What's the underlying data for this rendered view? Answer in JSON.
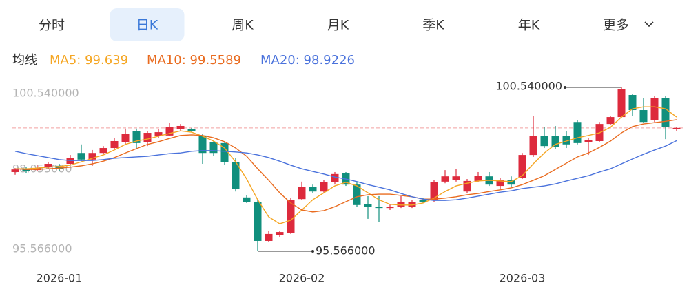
{
  "tabs": [
    "分时",
    "日K",
    "周K",
    "月K",
    "季K",
    "年K",
    "更多"
  ],
  "active_tab": 1,
  "chart_data": {
    "type": "candlestick",
    "legend_title": "均线",
    "up_color": "#dd2a3c",
    "down_color": "#108f7d",
    "categories": [
      null,
      null,
      null,
      null,
      "2026-01",
      null,
      null,
      null,
      null,
      null,
      null,
      null,
      null,
      null,
      null,
      null,
      null,
      null,
      null,
      null,
      null,
      null,
      null,
      null,
      null,
      null,
      "2026-02",
      null,
      null,
      null,
      null,
      null,
      null,
      null,
      null,
      null,
      null,
      null,
      null,
      null,
      null,
      null,
      null,
      null,
      null,
      null,
      "2026-03",
      null,
      null,
      null,
      null,
      null,
      null,
      null,
      null,
      null,
      null,
      null,
      null,
      null,
      null
    ],
    "open": [
      97.97,
      98.07,
      98.03,
      98.12,
      98.16,
      98.22,
      98.55,
      98.35,
      98.55,
      98.7,
      98.87,
      99.22,
      98.87,
      99.06,
      99.08,
      99.27,
      99.27,
      99.08,
      98.87,
      98.85,
      98.28,
      97.2,
      97.07,
      95.88,
      96.05,
      96.13,
      97.15,
      97.51,
      97.38,
      97.66,
      97.93,
      97.59,
      96.99,
      96.92,
      96.88,
      96.92,
      96.92,
      97.13,
      97.11,
      97.68,
      97.72,
      97.38,
      97.7,
      97.84,
      97.55,
      97.72,
      97.8,
      98.49,
      99.06,
      99.06,
      99.06,
      99.49,
      98.87,
      98.91,
      99.43,
      99.64,
      100.31,
      99.85,
      99.54,
      100.21,
      99.27
    ],
    "close": [
      98.05,
      98.01,
      98.09,
      98.22,
      98.07,
      98.39,
      98.35,
      98.55,
      98.7,
      98.91,
      99.12,
      98.85,
      99.16,
      99.18,
      99.33,
      99.37,
      99.22,
      98.55,
      98.55,
      98.28,
      97.45,
      97.07,
      95.88,
      96.09,
      96.15,
      97.13,
      97.51,
      97.38,
      97.66,
      97.91,
      97.59,
      96.97,
      96.92,
      96.88,
      96.92,
      97.07,
      97.07,
      97.07,
      97.66,
      97.84,
      97.84,
      97.7,
      97.86,
      97.59,
      97.72,
      97.59,
      98.49,
      99.06,
      98.76,
      98.74,
      98.81,
      98.85,
      98.95,
      99.43,
      99.64,
      100.48,
      99.85,
      99.49,
      100.21,
      99.33,
      99.31
    ],
    "high": [
      98.09,
      98.12,
      98.18,
      98.28,
      98.22,
      98.49,
      98.81,
      98.64,
      98.76,
      99.01,
      99.29,
      99.29,
      99.22,
      99.27,
      99.47,
      99.43,
      99.31,
      99.12,
      98.91,
      98.89,
      98.39,
      97.28,
      97.13,
      96.19,
      96.19,
      97.18,
      97.68,
      97.59,
      97.72,
      97.97,
      97.97,
      97.66,
      97.24,
      97.24,
      96.99,
      97.24,
      97.13,
      97.18,
      97.72,
      98.03,
      98.07,
      97.76,
      97.97,
      97.97,
      97.8,
      97.84,
      98.55,
      99.68,
      99.33,
      99.37,
      99.22,
      99.54,
      99.01,
      99.49,
      99.68,
      100.54,
      100.35,
      100.21,
      100.27,
      100.27,
      99.33
    ],
    "low": [
      97.89,
      97.93,
      97.99,
      98.07,
      98.01,
      98.18,
      98.3,
      98.16,
      98.51,
      98.66,
      98.81,
      98.66,
      98.76,
      99.01,
      99.06,
      99.22,
      99.18,
      98.22,
      98.47,
      98.18,
      97.38,
      97.03,
      95.566,
      95.84,
      96.0,
      96.09,
      97.13,
      97.34,
      97.34,
      97.59,
      97.55,
      96.92,
      96.55,
      96.46,
      96.82,
      96.88,
      96.88,
      97.03,
      97.07,
      97.63,
      97.68,
      97.34,
      97.66,
      97.55,
      97.45,
      97.51,
      97.76,
      98.43,
      98.7,
      98.66,
      98.7,
      98.81,
      98.49,
      98.87,
      99.39,
      99.6,
      99.68,
      99.47,
      99.49,
      98.97,
      99.22
    ],
    "series": [
      {
        "name": "MA5: 99.639",
        "color": "#f5a623",
        "values": [
          98.07,
          98.07,
          98.09,
          98.12,
          98.14,
          98.18,
          98.28,
          98.39,
          98.49,
          98.64,
          98.81,
          98.91,
          98.97,
          99.06,
          99.14,
          99.22,
          99.18,
          99.06,
          98.91,
          98.7,
          98.28,
          97.76,
          97.13,
          96.61,
          96.4,
          96.51,
          96.82,
          97.13,
          97.34,
          97.55,
          97.66,
          97.55,
          97.34,
          97.13,
          96.99,
          96.97,
          96.97,
          97.03,
          97.18,
          97.38,
          97.55,
          97.63,
          97.7,
          97.72,
          97.7,
          97.68,
          97.86,
          98.22,
          98.55,
          98.81,
          98.91,
          99.01,
          99.08,
          99.16,
          99.33,
          99.64,
          99.89,
          99.95,
          99.95,
          99.89,
          99.639
        ]
      },
      {
        "name": "MA10: 99.5589",
        "color": "#e96b1f",
        "values": [
          98.07,
          98.05,
          98.05,
          98.07,
          98.09,
          98.12,
          98.16,
          98.22,
          98.3,
          98.41,
          98.55,
          98.68,
          98.81,
          98.89,
          98.99,
          99.08,
          99.1,
          99.08,
          99.01,
          98.89,
          98.7,
          98.45,
          98.07,
          97.72,
          97.34,
          97.03,
          96.82,
          96.76,
          96.8,
          96.92,
          97.07,
          97.22,
          97.28,
          97.3,
          97.3,
          97.26,
          97.22,
          97.15,
          97.15,
          97.18,
          97.22,
          97.28,
          97.32,
          97.38,
          97.43,
          97.49,
          97.59,
          97.72,
          97.86,
          98.05,
          98.24,
          98.43,
          98.55,
          98.72,
          98.91,
          99.16,
          99.35,
          99.43,
          99.47,
          99.51,
          99.5589
        ]
      },
      {
        "name": "MA20: 98.9226",
        "color": "#4a72dc",
        "values": [
          98.6,
          98.53,
          98.47,
          98.41,
          98.35,
          98.32,
          98.32,
          98.32,
          98.35,
          98.39,
          98.41,
          98.43,
          98.45,
          98.49,
          98.53,
          98.55,
          98.6,
          98.62,
          98.62,
          98.6,
          98.58,
          98.55,
          98.49,
          98.41,
          98.3,
          98.18,
          98.07,
          97.99,
          97.91,
          97.82,
          97.76,
          97.68,
          97.59,
          97.51,
          97.43,
          97.32,
          97.22,
          97.15,
          97.11,
          97.11,
          97.13,
          97.18,
          97.24,
          97.3,
          97.36,
          97.4,
          97.47,
          97.51,
          97.55,
          97.61,
          97.7,
          97.78,
          97.86,
          97.97,
          98.07,
          98.22,
          98.37,
          98.51,
          98.64,
          98.76,
          98.9226
        ]
      }
    ],
    "ylim": [
      95.566,
      100.54
    ],
    "yticks": [
      {
        "value": 100.54,
        "label": "100.540000"
      },
      {
        "value": 98.053,
        "label": "98.053000"
      },
      {
        "value": 95.566,
        "label": "95.566000"
      }
    ],
    "max_label": {
      "value": 100.54,
      "label": "100.540000"
    },
    "min_label": {
      "value": 95.566,
      "label": "95.566000"
    }
  }
}
